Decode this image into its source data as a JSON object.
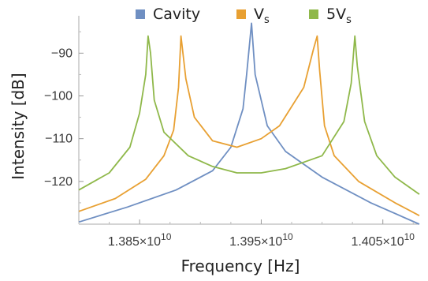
{
  "chart_data": {
    "type": "line",
    "xlabel": "Frequency [Hz]",
    "ylabel": "Intensity [dB]",
    "xlim": [
      13800000000.0,
      14080000000.0
    ],
    "ylim": [
      -130,
      -82
    ],
    "x_ticks": [
      {
        "value": 13850000000.0,
        "mantissa": "1.385",
        "exponent": "10"
      },
      {
        "value": 13950000000.0,
        "mantissa": "1.395",
        "exponent": "10"
      },
      {
        "value": 14050000000.0,
        "mantissa": "1.405",
        "exponent": "10"
      }
    ],
    "y_ticks": [
      -90,
      -100,
      -110,
      -120
    ],
    "series": [
      {
        "name": "Cavity",
        "color": "#6f8fc2",
        "x": [
          13800000000.0,
          13840000000.0,
          13880000000.0,
          13910000000.0,
          13925000000.0,
          13935000000.0,
          13938000000.0,
          13942000000.0,
          13945000000.0,
          13955000000.0,
          13970000000.0,
          14000000000.0,
          14040000000.0,
          14080000000.0
        ],
        "y": [
          -129.5,
          -126,
          -122,
          -117.5,
          -112,
          -103,
          -95,
          -83,
          -95,
          -107,
          -113,
          -119,
          -125,
          -130
        ]
      },
      {
        "name": "V",
        "subscript": "s",
        "color": "#e8a032",
        "x": [
          13800000000.0,
          13830000000.0,
          13855000000.0,
          13870000000.0,
          13878000000.0,
          13882000000.0,
          13884000000.0,
          13888000000.0,
          13895000000.0,
          13910000000.0,
          13930000000.0,
          13950000000.0,
          13965000000.0,
          13985000000.0,
          13993000000.0,
          13996000000.0,
          13998000000.0,
          14002000000.0,
          14010000000.0,
          14030000000.0,
          14060000000.0,
          14080000000.0
        ],
        "y": [
          -127,
          -124,
          -119.5,
          -114,
          -108,
          -98,
          -86,
          -96,
          -105,
          -110.5,
          -112,
          -110,
          -107,
          -98,
          -89,
          -86,
          -94,
          -107,
          -114,
          -120,
          -125,
          -128
        ]
      },
      {
        "name": "5V",
        "subscript": "s",
        "color": "#8fb84a",
        "x": [
          13800000000.0,
          13825000000.0,
          13842000000.0,
          13850000000.0,
          13855000000.0,
          13857000000.0,
          13859000000.0,
          13862000000.0,
          13870000000.0,
          13890000000.0,
          13910000000.0,
          13930000000.0,
          13950000000.0,
          13970000000.0,
          14000000000.0,
          14018000000.0,
          14024000000.0,
          14027000000.0,
          14029000000.0,
          14035000000.0,
          14045000000.0,
          14060000000.0,
          14080000000.0
        ],
        "y": [
          -122,
          -118,
          -112,
          -104,
          -95,
          -86,
          -90,
          -101,
          -108.5,
          -114,
          -116.5,
          -118,
          -118,
          -117,
          -114,
          -106,
          -97,
          -86,
          -93,
          -106,
          -114,
          -119,
          -123
        ]
      }
    ],
    "legend": "top"
  }
}
